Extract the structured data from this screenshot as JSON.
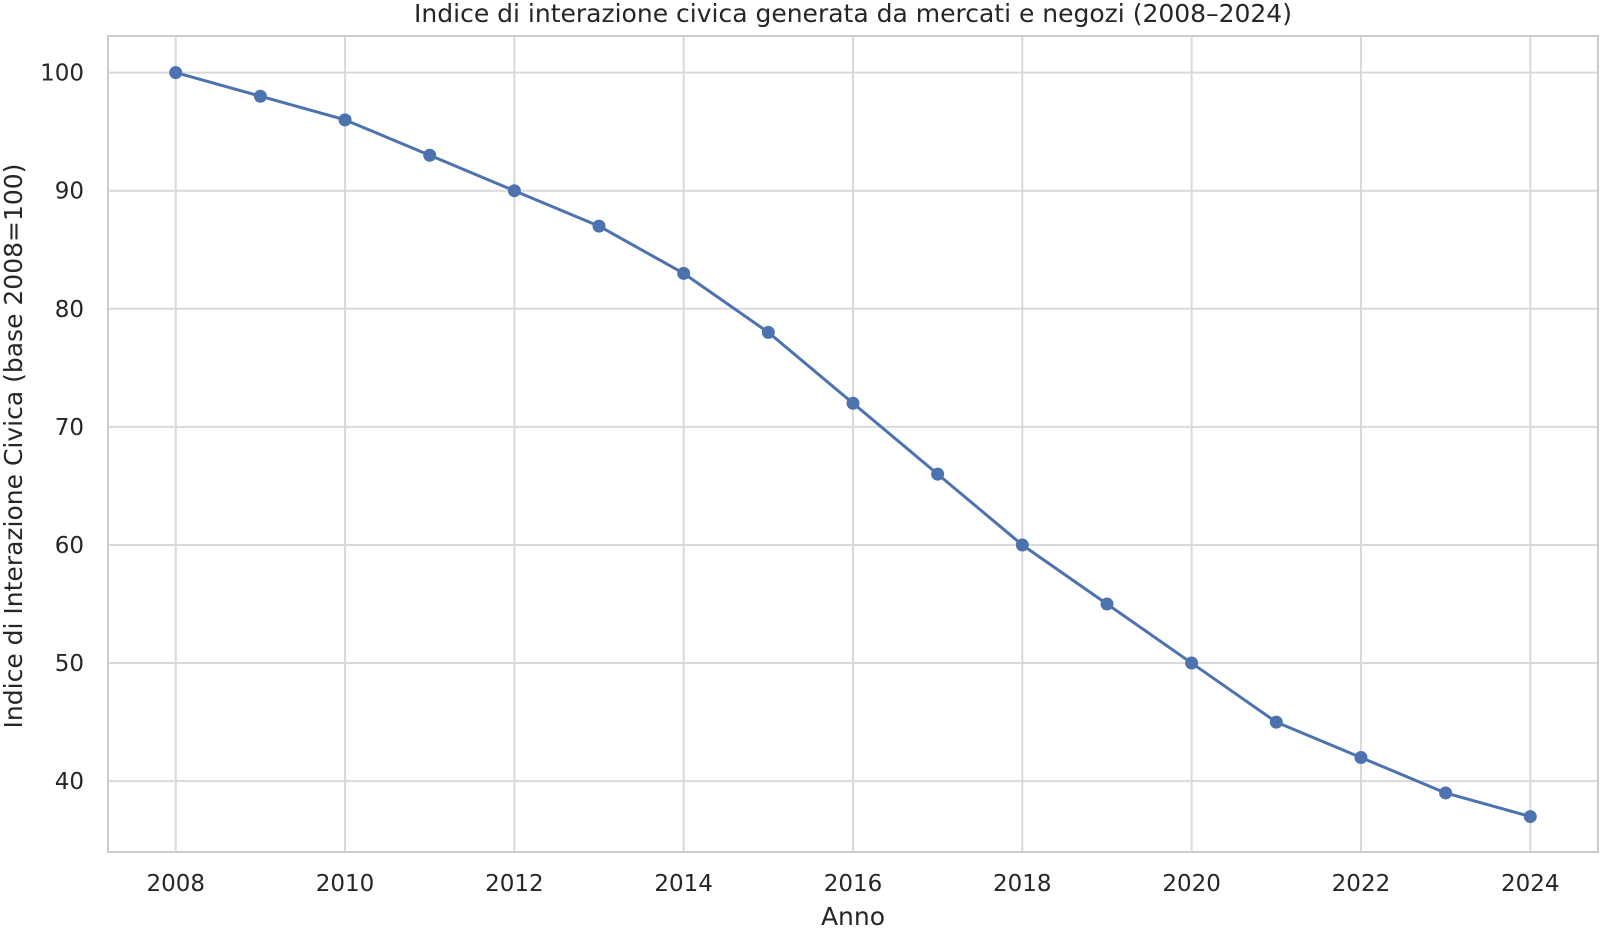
{
  "chart_data": {
    "type": "line",
    "title": "Indice di interazione civica generata da mercati e negozi (2008–2024)",
    "xlabel": "Anno",
    "ylabel": "Indice di Interazione Civica (base 2008=100)",
    "x": [
      2008,
      2009,
      2010,
      2011,
      2012,
      2013,
      2014,
      2015,
      2016,
      2017,
      2018,
      2019,
      2020,
      2021,
      2022,
      2023,
      2024
    ],
    "series": [
      {
        "values": [
          100,
          98,
          96,
          93,
          90,
          87,
          83,
          78,
          72,
          66,
          60,
          55,
          50,
          45,
          42,
          39,
          37
        ],
        "color": "#4c72b0"
      }
    ],
    "xlim": [
      2007.2,
      2024.8
    ],
    "ylim": [
      34,
      103.1
    ],
    "xticks": [
      "2008",
      "2010",
      "2012",
      "2014",
      "2016",
      "2018",
      "2020",
      "2022",
      "2024"
    ],
    "yticks": [
      "40",
      "50",
      "60",
      "70",
      "80",
      "90",
      "100"
    ],
    "grid": true,
    "legend": "none",
    "colors": {
      "background": "#ffffff",
      "grid": "#d9d9d9",
      "spine": "#cccccc",
      "line": "#4c72b0",
      "text": "#262626"
    }
  }
}
